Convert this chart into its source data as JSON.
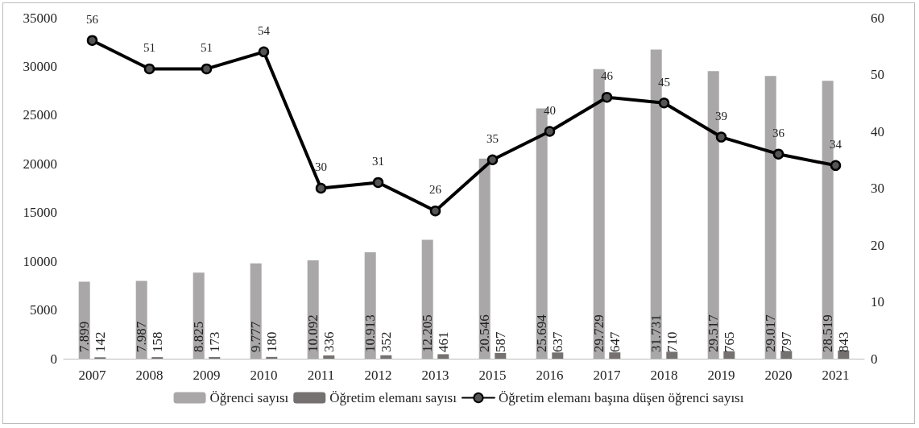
{
  "chart_data": {
    "type": "bar",
    "categories": [
      "2007",
      "2008",
      "2009",
      "2010",
      "2011",
      "2012",
      "2013",
      "2015",
      "2016",
      "2017",
      "2018",
      "2019",
      "2020",
      "2021"
    ],
    "series": [
      {
        "name": "Öğrenci sayısı",
        "color": "#a9a7a7",
        "values": [
          7899,
          7987,
          8825,
          9777,
          10092,
          10913,
          12205,
          20546,
          25694,
          29729,
          31731,
          29517,
          29017,
          28519
        ],
        "value_labels": [
          "7.899",
          "7.987",
          "8.825",
          "9.777",
          "10.092",
          "10.913",
          "12.205",
          "20.546",
          "25.694",
          "29.729",
          "31.731",
          "29.517",
          "29.017",
          "28.519"
        ]
      },
      {
        "name": "Öğretim elemanı sayısı",
        "color": "#767171",
        "values": [
          142,
          158,
          173,
          180,
          336,
          352,
          461,
          587,
          637,
          647,
          710,
          765,
          797,
          843
        ],
        "value_labels": [
          "142",
          "158",
          "173",
          "180",
          "336",
          "352",
          "461",
          "587",
          "637",
          "647",
          "710",
          "765",
          "797",
          "843"
        ]
      },
      {
        "name": "Öğretim elemanı başına düşen öğrenci sayısı",
        "type": "line",
        "axis": "y2",
        "color": "#000000",
        "values": [
          56,
          51,
          51,
          54,
          30,
          31,
          26,
          35,
          40,
          46,
          45,
          39,
          36,
          34
        ],
        "value_labels": [
          "56",
          "51",
          "51",
          "54",
          "30",
          "31",
          "26",
          "35",
          "40",
          "46",
          "45",
          "39",
          "36",
          "34"
        ]
      }
    ],
    "ylim": [
      0,
      35000
    ],
    "yticks": [
      0,
      5000,
      10000,
      15000,
      20000,
      25000,
      30000,
      35000
    ],
    "y2lim": [
      0,
      60
    ],
    "y2ticks": [
      0,
      10,
      20,
      30,
      40,
      50,
      60
    ],
    "marker": "circle",
    "line_style": "solid",
    "grid": false,
    "legend": "bottom"
  }
}
